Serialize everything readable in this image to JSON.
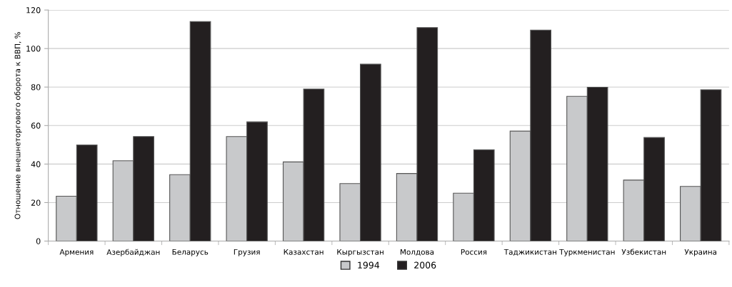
{
  "chart_data": {
    "type": "bar",
    "ylabel": "Отношение внешнеторгового оборота к ВВП, %",
    "categories": [
      "Армения",
      "Азербайджан",
      "Беларусь",
      "Грузия",
      "Казахстан",
      "Кыргызстан",
      "Молдова",
      "Россия",
      "Таджикистан",
      "Туркменистан",
      "Узбекистан",
      "Украина"
    ],
    "series": [
      {
        "name": "1994",
        "color": "#c8c9cb",
        "values": [
          23.3,
          41.7,
          34.5,
          54.3,
          41.1,
          29.9,
          35.1,
          24.9,
          57.1,
          75.2,
          31.7,
          28.4
        ]
      },
      {
        "name": "2006",
        "color": "#231f20",
        "values": [
          49.9,
          54.3,
          114,
          61.9,
          79,
          91.9,
          110.9,
          47.4,
          109.6,
          79.9,
          53.8,
          78.6
        ]
      }
    ],
    "ylim": [
      0,
      120
    ],
    "yticks": [
      0,
      20,
      40,
      60,
      80,
      100,
      120
    ],
    "grid": "y",
    "legend": "bottom"
  }
}
